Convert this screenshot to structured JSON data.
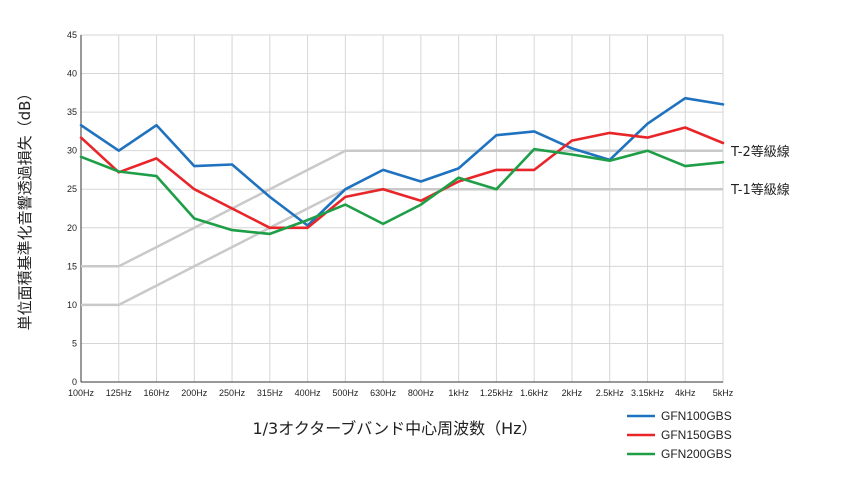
{
  "chart_data": {
    "type": "line",
    "title": "",
    "xlabel": "1/3オクターブバンド中心周波数（Hz）",
    "ylabel": "単位面積基準化音響透過損失（dB）",
    "ylim": [
      0,
      45
    ],
    "yticks": [
      0,
      5,
      10,
      15,
      20,
      25,
      30,
      35,
      40,
      45
    ],
    "grid": true,
    "legend_position": "bottom-right",
    "categories": [
      "100Hz",
      "125Hz",
      "160Hz",
      "200Hz",
      "250Hz",
      "315Hz",
      "400Hz",
      "500Hz",
      "630Hz",
      "800Hz",
      "1kHz",
      "1.25kHz",
      "1.6kHz",
      "2kHz",
      "2.5kHz",
      "3.15kHz",
      "4kHz",
      "5kHz"
    ],
    "series": [
      {
        "name": "GFN100GBS",
        "color": "#1f72bf",
        "values": [
          33.3,
          30.0,
          33.3,
          28.0,
          28.2,
          24.0,
          20.3,
          25.0,
          27.5,
          26.0,
          27.7,
          32.0,
          32.5,
          30.3,
          28.8,
          33.5,
          36.8,
          36.0
        ]
      },
      {
        "name": "GFN150GBS",
        "color": "#e8262a",
        "values": [
          31.7,
          27.2,
          29.0,
          25.0,
          22.5,
          20.0,
          20.0,
          24.0,
          25.0,
          23.5,
          26.0,
          27.5,
          27.5,
          31.3,
          32.3,
          31.7,
          33.0,
          31.0
        ]
      },
      {
        "name": "GFN200GBS",
        "color": "#1e9e46",
        "values": [
          29.2,
          27.3,
          26.7,
          21.2,
          19.7,
          19.2,
          21.0,
          23.0,
          20.5,
          23.0,
          26.5,
          25.0,
          30.2,
          29.5,
          28.7,
          30.0,
          28.0,
          28.5
        ]
      }
    ],
    "reference_lines": [
      {
        "name": "T-2等級線",
        "color": "#c9c9c9",
        "values": [
          null,
          15,
          17.5,
          20,
          22.5,
          25,
          27.5,
          30,
          30,
          30,
          30,
          30,
          30,
          30,
          30,
          30,
          30,
          30
        ]
      },
      {
        "name": "T-1等級線",
        "color": "#c9c9c9",
        "values": [
          null,
          10,
          12.5,
          15,
          17.5,
          20,
          22.5,
          25,
          25,
          25,
          25,
          25,
          25,
          25,
          25,
          25,
          25,
          25
        ]
      }
    ],
    "reference_lines_extra": {
      "t2_left_stub": 15,
      "t1_left_stub": 10
    }
  }
}
